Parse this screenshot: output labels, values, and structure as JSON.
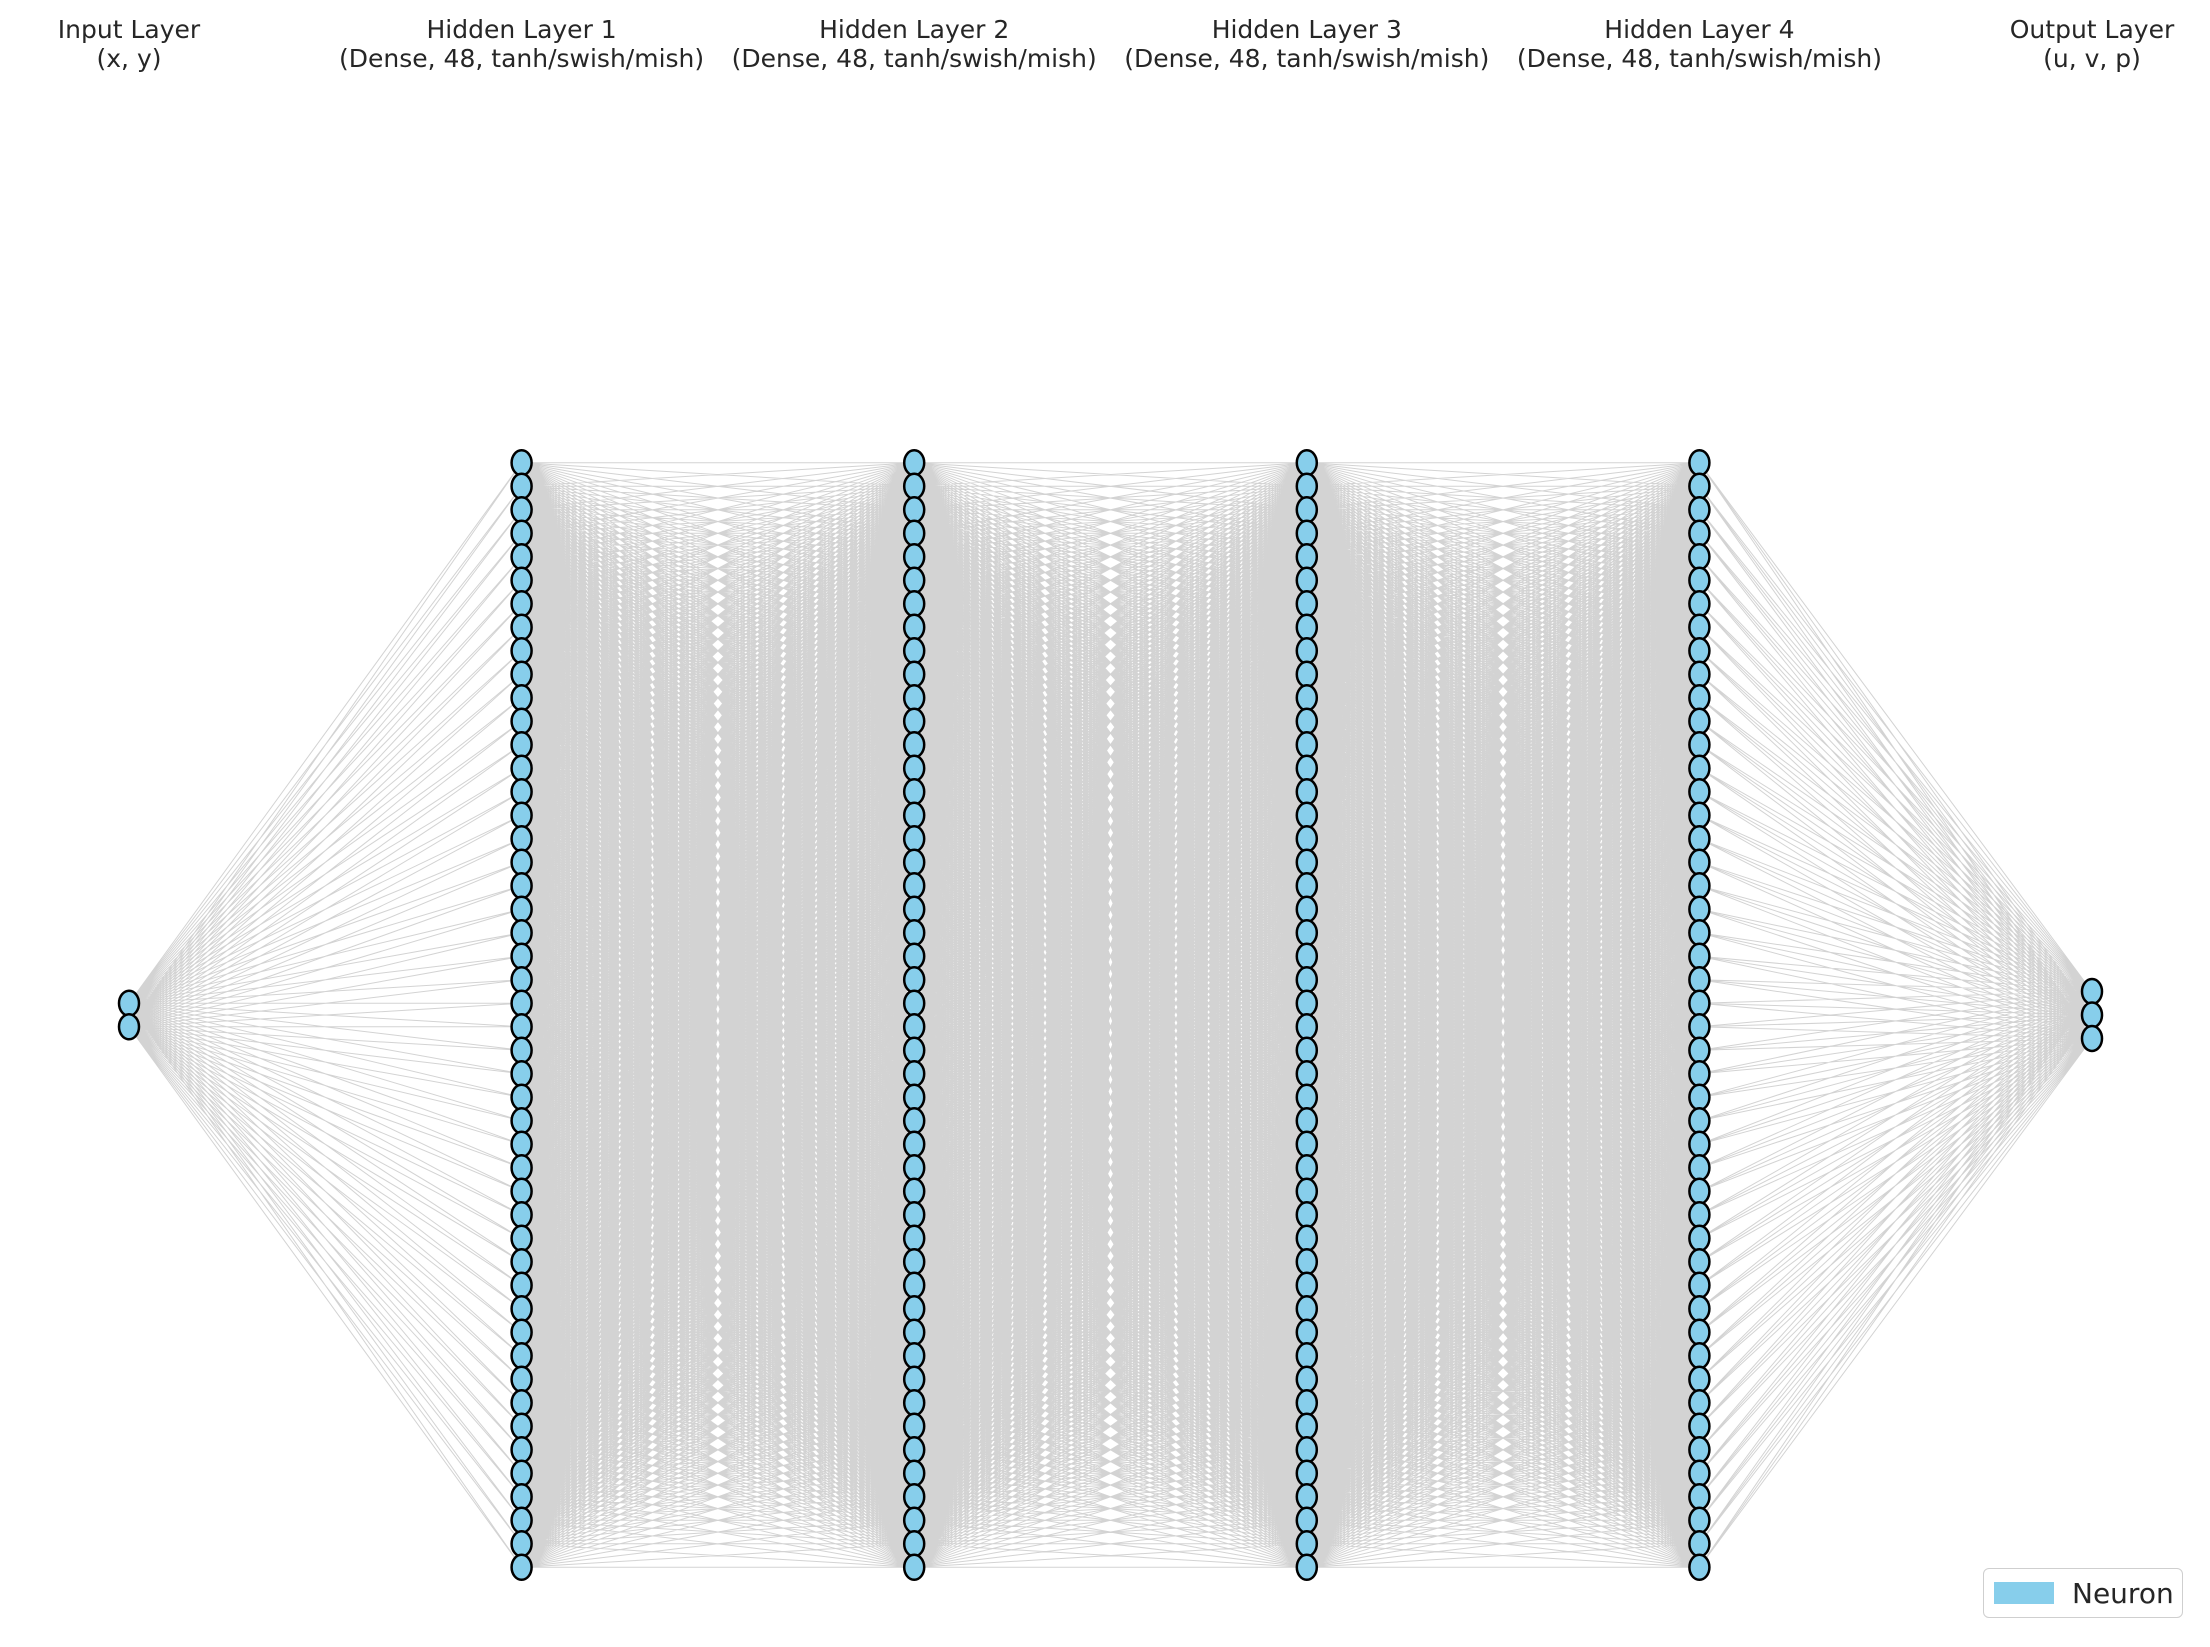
{
  "diagram": {
    "type": "neural-network",
    "layers": [
      {
        "title": "Input Layer",
        "subtitle": "(x, y)",
        "neurons": 2
      },
      {
        "title": "Hidden Layer 1",
        "subtitle": "(Dense, 48, tanh/swish/mish)",
        "neurons": 48
      },
      {
        "title": "Hidden Layer 2",
        "subtitle": "(Dense, 48, tanh/swish/mish)",
        "neurons": 48
      },
      {
        "title": "Hidden Layer 3",
        "subtitle": "(Dense, 48, tanh/swish/mish)",
        "neurons": 48
      },
      {
        "title": "Hidden Layer 4",
        "subtitle": "(Dense, 48, tanh/swish/mish)",
        "neurons": 48
      },
      {
        "title": "Output Layer",
        "subtitle": "(u, v, p)",
        "neurons": 3
      }
    ],
    "colors": {
      "neuron_fill": "#87ceeb",
      "neuron_stroke": "#000000",
      "edge": "#d3d3d3"
    }
  },
  "legend": {
    "label": "Neuron",
    "color": "#87ceeb"
  }
}
